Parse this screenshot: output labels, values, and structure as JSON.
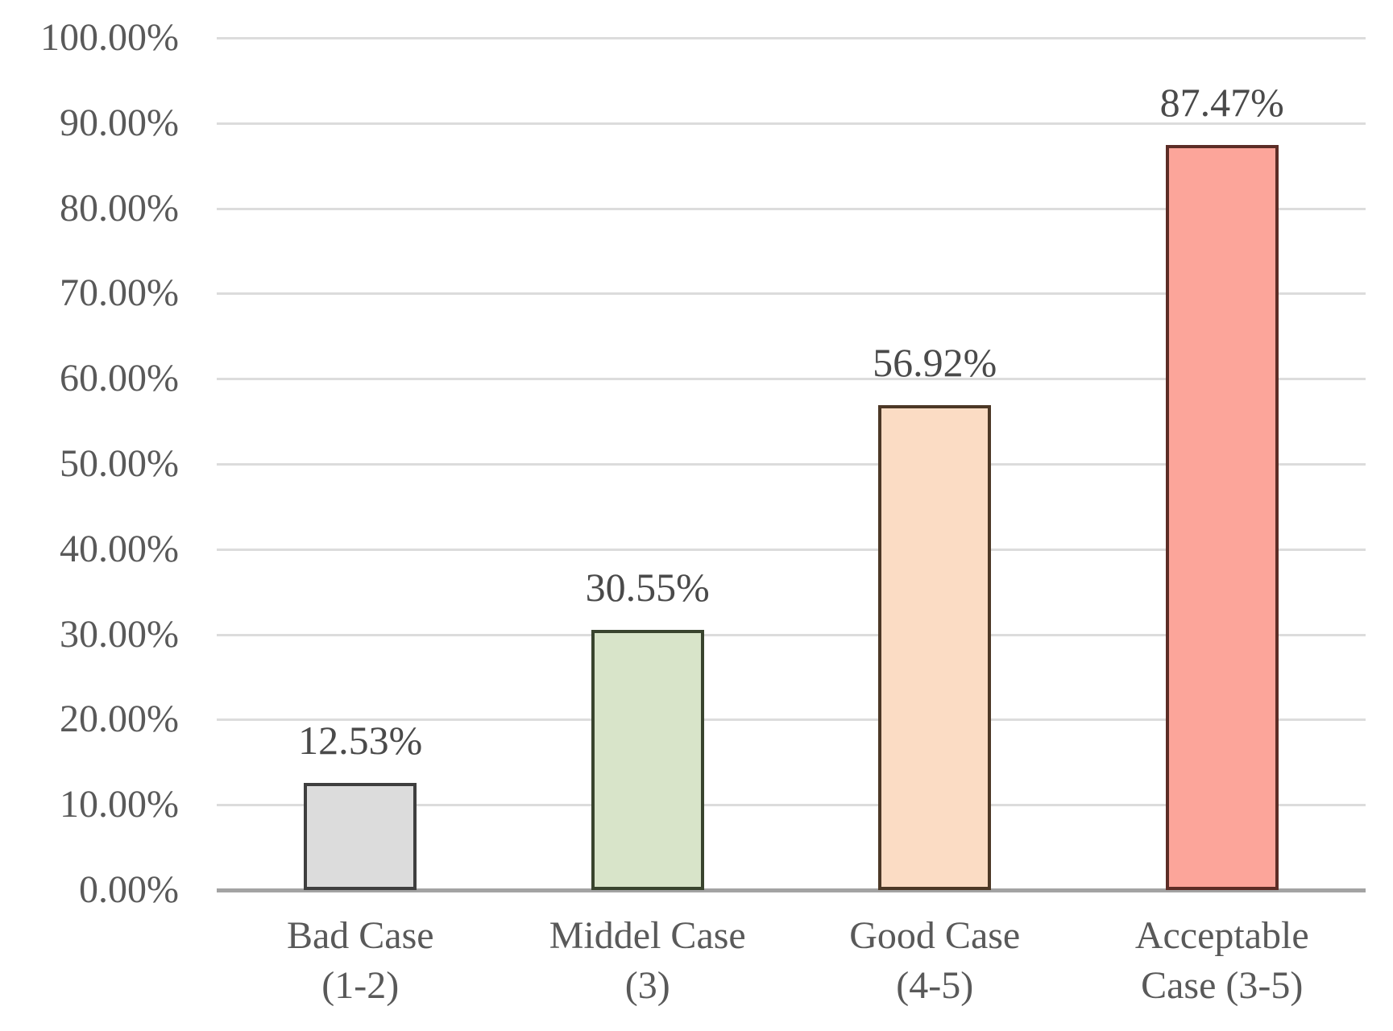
{
  "chart_data": {
    "type": "bar",
    "title": "",
    "xlabel": "",
    "ylabel": "",
    "ylim": [
      0,
      100
    ],
    "grid": true,
    "legend": "none",
    "categories": [
      {
        "line1": "Bad Case",
        "line2": "(1-2)"
      },
      {
        "line1": "Middel Case",
        "line2": "(3)"
      },
      {
        "line1": "Good Case",
        "line2": "(4-5)"
      },
      {
        "line1": "Acceptable",
        "line2": "Case (3-5)"
      }
    ],
    "values": [
      12.53,
      30.55,
      56.92,
      87.47
    ],
    "value_labels": [
      "12.53%",
      "30.55%",
      "56.92%",
      "87.47%"
    ],
    "bar_fill_colors": [
      "#dcdcdc",
      "#d8e4c9",
      "#fbdcc4",
      "#fca59a"
    ],
    "bar_border_colors": [
      "#3f3f3f",
      "#39442e",
      "#4c3826",
      "#5c2d26"
    ],
    "y_axis": {
      "tick_values": [
        0,
        10,
        20,
        30,
        40,
        50,
        60,
        70,
        80,
        90,
        100
      ],
      "tick_labels": [
        "0.00%",
        "10.00%",
        "20.00%",
        "30.00%",
        "40.00%",
        "50.00%",
        "60.00%",
        "70.00%",
        "80.00%",
        "90.00%",
        "100.00%"
      ]
    },
    "colors": {
      "gridline": "#dcdcdc",
      "axis_line": "#a3a3a3",
      "tick_text": "#595959",
      "value_text": "#4a4a4a"
    }
  }
}
